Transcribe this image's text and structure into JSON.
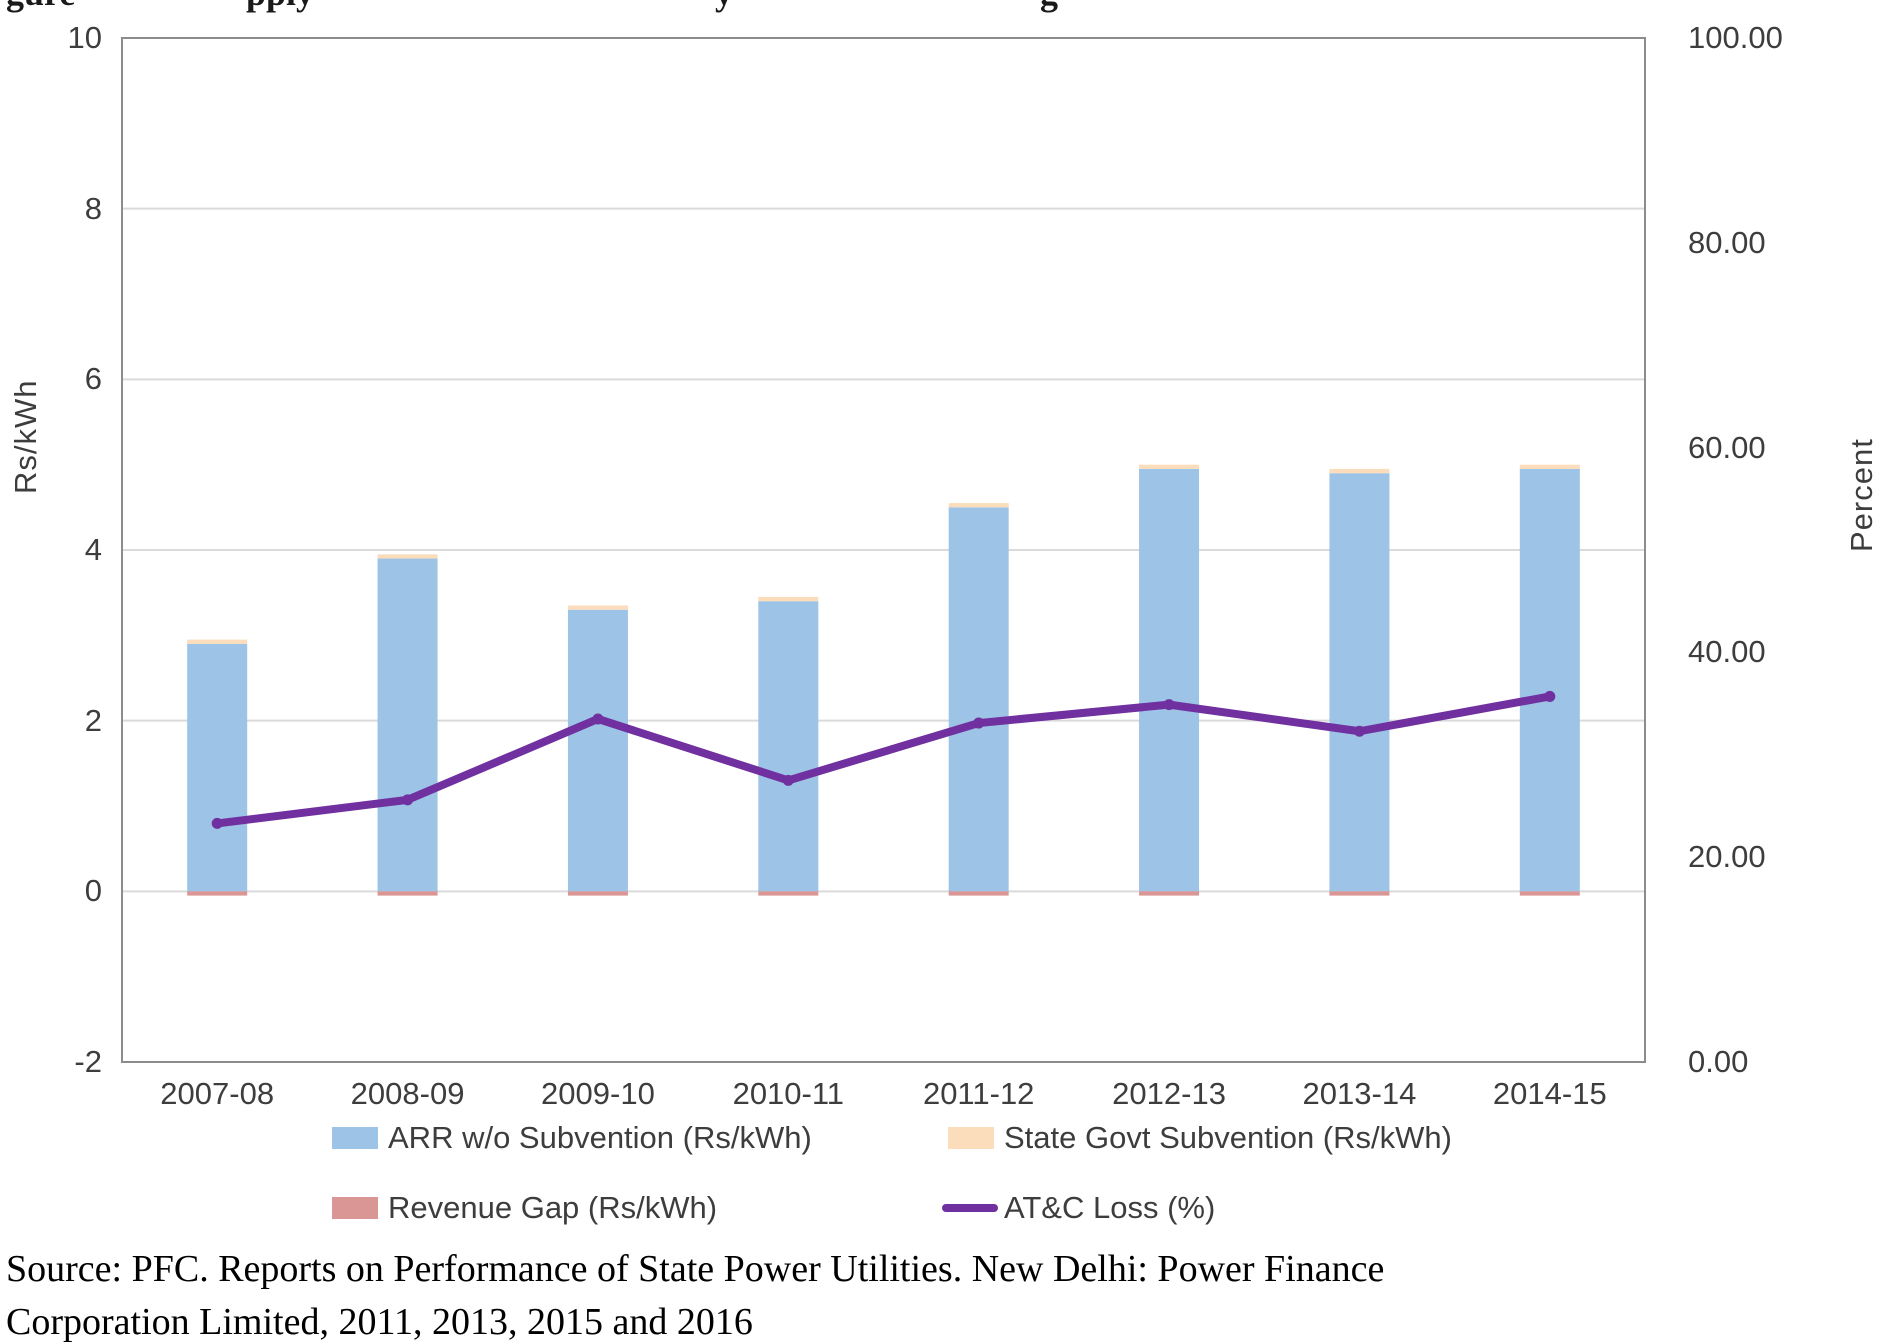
{
  "page": {
    "clipped_title_fragments": [
      {
        "text": "gure",
        "x": 6
      },
      {
        "text": "pply",
        "x": 246
      },
      {
        "text": "y",
        "x": 715
      },
      {
        "text": "g",
        "x": 1040
      }
    ]
  },
  "chart_data": {
    "type": "combo",
    "categories": [
      "2007-08",
      "2008-09",
      "2009-10",
      "2010-11",
      "2011-12",
      "2012-13",
      "2013-14",
      "2014-15"
    ],
    "series": [
      {
        "name": "ARR w/o Subvention (Rs/kWh)",
        "type": "bar",
        "axis": "left",
        "color": "#9DC3E6",
        "values": [
          2.9,
          3.9,
          3.3,
          3.4,
          4.5,
          4.95,
          4.9,
          4.95
        ]
      },
      {
        "name": "State Govt Subvention (Rs/kWh)",
        "type": "bar",
        "axis": "left",
        "color": "#FBDDBB",
        "values": [
          0.05,
          0.05,
          0.05,
          0.05,
          0.05,
          0.05,
          0.05,
          0.05
        ]
      },
      {
        "name": "Revenue Gap (Rs/kWh)",
        "type": "bar",
        "axis": "left",
        "color": "#D99694",
        "values": [
          -0.05,
          -0.05,
          -0.05,
          -0.05,
          -0.05,
          -0.05,
          -0.05,
          -0.05
        ]
      },
      {
        "name": "AT&C Loss (%)",
        "type": "line",
        "axis": "right",
        "color": "#7030A0",
        "values": [
          23.3,
          25.6,
          33.5,
          27.5,
          33.1,
          34.9,
          32.3,
          35.7
        ]
      }
    ],
    "left_axis": {
      "label": "Rs/kWh",
      "ticks": [
        10,
        8,
        6,
        4,
        2,
        0,
        -2
      ],
      "range": [
        -2,
        10
      ]
    },
    "right_axis": {
      "label": "Percent",
      "ticks": [
        "100.00",
        "80.00",
        "60.00",
        "40.00",
        "20.00",
        "0.00"
      ],
      "range": [
        0,
        100
      ]
    },
    "grid": true,
    "legend_position": "bottom"
  },
  "source": {
    "line1": "Source: PFC. Reports on Performance of State Power Utilities. New Delhi: Power Finance",
    "line2": "Corporation Limited, 2011, 2013, 2015 and 2016"
  }
}
